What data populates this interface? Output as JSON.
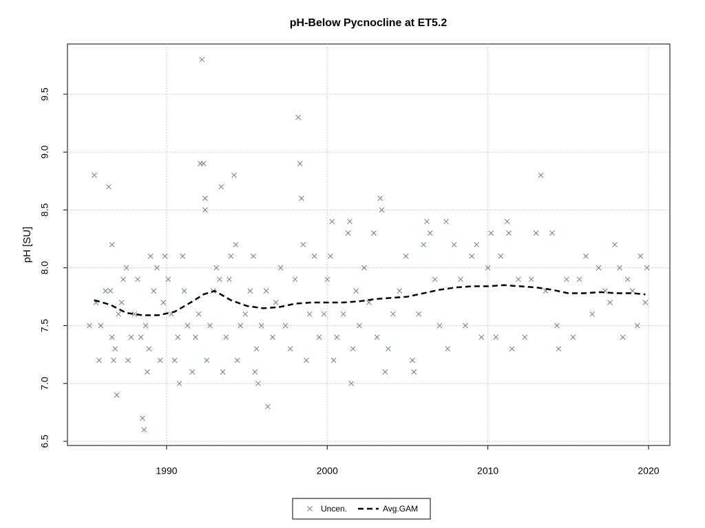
{
  "chart_data": {
    "type": "scatter",
    "title": "pH-Below Pycnocline at ET5.2",
    "ylabel": "pH [SU]",
    "xlim": [
      1983.83,
      2021.33
    ],
    "xticks": [
      1990,
      2000,
      2010,
      2020
    ],
    "ylim": [
      6.464,
      9.934
    ],
    "yticks": [
      6.5,
      {
        "value": 7,
        "label": "7.0"
      },
      7.5,
      {
        "value": 8,
        "label": "8.0"
      },
      8.5,
      {
        "value": 9,
        "label": "9.0"
      },
      9.5
    ],
    "grid": true,
    "legend": "bottom",
    "series": [
      {
        "name": "Uncen.",
        "type": "scatter",
        "color": "#6b7b8c",
        "x": [
          1985.2,
          1985.5,
          1985.6,
          1985.8,
          1985.9,
          1986.2,
          1986.4,
          1986.5,
          1986.6,
          1986.6,
          1986.7,
          1986.8,
          1986.9,
          1987.0,
          1987.2,
          1987.3,
          1987.5,
          1987.6,
          1987.8,
          1988.0,
          1988.2,
          1988.4,
          1988.5,
          1988.6,
          1988.7,
          1988.8,
          1988.9,
          1989.0,
          1989.2,
          1989.4,
          1989.6,
          1989.8,
          1989.9,
          1990.1,
          1990.3,
          1990.5,
          1990.7,
          1990.8,
          1991.0,
          1991.1,
          1991.3,
          1991.6,
          1991.8,
          1992.0,
          1992.1,
          1992.2,
          1992.3,
          1992.4,
          1992.4,
          1992.5,
          1992.7,
          1992.9,
          1993.1,
          1993.3,
          1993.4,
          1993.5,
          1993.7,
          1993.9,
          1994.0,
          1994.2,
          1994.3,
          1994.4,
          1994.6,
          1994.9,
          1995.2,
          1995.4,
          1995.5,
          1995.6,
          1995.7,
          1995.9,
          1996.2,
          1996.3,
          1996.6,
          1996.8,
          1997.1,
          1997.4,
          1997.7,
          1998.0,
          1998.2,
          1998.3,
          1998.4,
          1998.5,
          1998.7,
          1998.9,
          1999.2,
          1999.5,
          1999.8,
          2000.0,
          2000.2,
          2000.3,
          2000.4,
          2000.6,
          2001.0,
          2001.3,
          2001.4,
          2001.5,
          2001.6,
          2001.8,
          2002.0,
          2002.3,
          2002.6,
          2002.9,
          2003.1,
          2003.3,
          2003.4,
          2003.6,
          2003.8,
          2004.1,
          2004.5,
          2004.9,
          2005.3,
          2005.4,
          2005.7,
          2006.0,
          2006.2,
          2006.4,
          2006.7,
          2007.0,
          2007.4,
          2007.5,
          2007.9,
          2008.3,
          2008.6,
          2009.0,
          2009.3,
          2009.6,
          2010.0,
          2010.2,
          2010.5,
          2010.8,
          2011.2,
          2011.3,
          2011.5,
          2011.9,
          2012.3,
          2012.7,
          2013.0,
          2013.3,
          2013.6,
          2014.0,
          2014.3,
          2014.4,
          2014.9,
          2015.3,
          2015.7,
          2016.1,
          2016.5,
          2016.9,
          2017.3,
          2017.6,
          2017.9,
          2018.2,
          2018.4,
          2018.7,
          2019.0,
          2019.3,
          2019.5,
          2019.8,
          2019.9
        ],
        "values": [
          7.5,
          8.8,
          7.7,
          7.2,
          7.5,
          7.8,
          8.7,
          7.8,
          8.2,
          7.4,
          7.2,
          7.3,
          6.9,
          7.6,
          7.7,
          7.9,
          8.0,
          7.2,
          7.4,
          7.6,
          7.9,
          7.4,
          6.7,
          6.6,
          7.5,
          7.1,
          7.3,
          8.1,
          7.8,
          8.0,
          7.2,
          7.7,
          8.1,
          7.9,
          7.6,
          7.2,
          7.4,
          7.0,
          8.1,
          7.8,
          7.5,
          7.1,
          7.4,
          7.6,
          8.9,
          9.8,
          8.9,
          8.6,
          8.5,
          7.2,
          7.5,
          7.8,
          8.0,
          7.9,
          8.7,
          7.1,
          7.4,
          7.9,
          8.1,
          8.8,
          8.2,
          7.2,
          7.5,
          7.6,
          7.8,
          8.1,
          7.1,
          7.3,
          7.0,
          7.5,
          7.8,
          6.8,
          7.4,
          7.7,
          8.0,
          7.5,
          7.3,
          7.9,
          9.3,
          8.9,
          8.6,
          8.2,
          7.2,
          7.6,
          8.1,
          7.4,
          7.6,
          7.9,
          8.1,
          8.4,
          7.2,
          7.4,
          7.6,
          8.3,
          8.4,
          7.0,
          7.3,
          7.8,
          7.5,
          8.0,
          7.7,
          8.3,
          7.4,
          8.6,
          8.5,
          7.1,
          7.3,
          7.6,
          7.8,
          8.1,
          7.2,
          7.1,
          7.6,
          8.2,
          8.4,
          8.3,
          7.9,
          7.5,
          8.4,
          7.3,
          8.2,
          7.9,
          7.5,
          8.1,
          8.2,
          7.4,
          8.0,
          8.3,
          7.4,
          8.1,
          8.4,
          8.3,
          7.3,
          7.9,
          7.4,
          7.9,
          8.3,
          8.8,
          7.8,
          8.3,
          7.5,
          7.3,
          7.9,
          7.4,
          7.9,
          8.1,
          7.6,
          8.0,
          7.8,
          7.7,
          8.2,
          8.0,
          7.4,
          7.9,
          7.8,
          7.5,
          8.1,
          7.7,
          8.0
        ]
      },
      {
        "name": "Avg.GAM",
        "type": "line",
        "color": "#000000",
        "x": [
          1985.5,
          1986.5,
          1987.5,
          1988.5,
          1989.5,
          1990.5,
          1991.5,
          1992.3,
          1993.0,
          1994.0,
          1995.0,
          1996.0,
          1997.0,
          1998.0,
          1999.0,
          2000.0,
          2001.0,
          2002.0,
          2003.0,
          2004.0,
          2005.0,
          2006.0,
          2007.0,
          2008.0,
          2009.0,
          2010.0,
          2011.0,
          2012.0,
          2013.0,
          2014.0,
          2015.0,
          2016.0,
          2017.0,
          2018.0,
          2019.0,
          2019.8
        ],
        "values": [
          7.72,
          7.68,
          7.61,
          7.59,
          7.59,
          7.62,
          7.7,
          7.77,
          7.8,
          7.72,
          7.67,
          7.65,
          7.66,
          7.69,
          7.7,
          7.7,
          7.7,
          7.71,
          7.73,
          7.74,
          7.75,
          7.78,
          7.81,
          7.83,
          7.84,
          7.84,
          7.85,
          7.84,
          7.83,
          7.81,
          7.78,
          7.78,
          7.79,
          7.78,
          7.78,
          7.77
        ]
      }
    ]
  }
}
